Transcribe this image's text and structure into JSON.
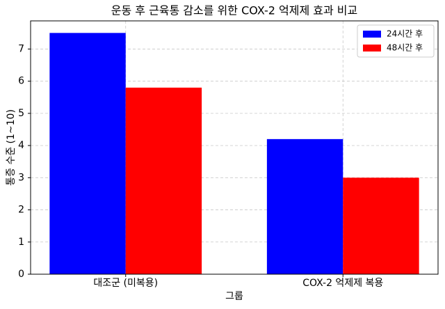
{
  "chart_data": {
    "type": "bar",
    "title": "운동 후 근육통 감소를 위한 COX-2 억제제 효과 비교",
    "x_label": "그룹",
    "y_label": "통증 수준 (1~10)",
    "categories": [
      "대조군 (미복용)",
      "COX-2 억제제 복용"
    ],
    "series": [
      {
        "name": "24시간 후",
        "color": "#0000ff",
        "values": [
          7.5,
          4.2
        ]
      },
      {
        "name": "48시간 후",
        "color": "#ff0000",
        "values": [
          5.8,
          3.0
        ]
      }
    ],
    "ylim": [
      0,
      7.875
    ],
    "yticks": [
      0,
      1,
      2,
      3,
      4,
      5,
      6,
      7
    ],
    "grid": true,
    "legend": "upper-right"
  }
}
